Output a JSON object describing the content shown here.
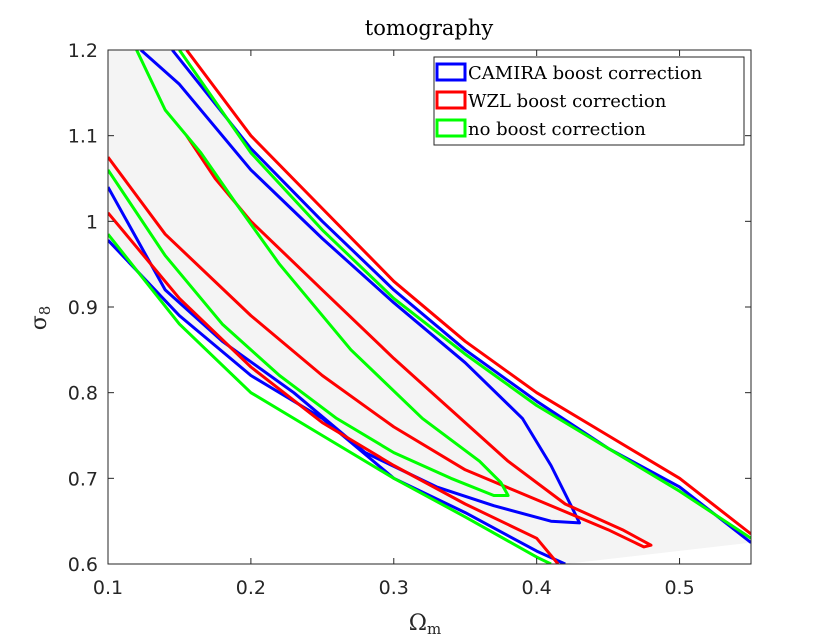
{
  "chart_data": {
    "type": "contour",
    "title": "tomography",
    "xlabel": "Ω",
    "xlabel_sub": "m",
    "ylabel": "σ",
    "ylabel_sub": "8",
    "xlim": [
      0.1,
      0.55
    ],
    "ylim": [
      0.6,
      1.2
    ],
    "xticks": [
      0.1,
      0.2,
      0.3,
      0.4,
      0.5
    ],
    "xtick_labels": [
      "0.1",
      "0.2",
      "0.3",
      "0.4",
      "0.5"
    ],
    "yticks": [
      0.6,
      0.7,
      0.8,
      0.9,
      1.0,
      1.1,
      1.2
    ],
    "ytick_labels": [
      "0.6",
      "0.7",
      "0.8",
      "0.9",
      "1",
      "1.1",
      "1.2"
    ],
    "legend_position": "top-right",
    "series": [
      {
        "name": "CAMIRA boost correction",
        "color": "#0000ff",
        "contours": [
          [
            [
              0.123,
              1.2
            ],
            [
              0.15,
              1.16
            ],
            [
              0.2,
              1.06
            ],
            [
              0.25,
              0.98
            ],
            [
              0.3,
              0.905
            ],
            [
              0.35,
              0.835
            ],
            [
              0.39,
              0.77
            ],
            [
              0.41,
              0.715
            ],
            [
              0.425,
              0.665
            ],
            [
              0.43,
              0.648
            ],
            [
              0.41,
              0.65
            ],
            [
              0.37,
              0.668
            ],
            [
              0.33,
              0.69
            ],
            [
              0.28,
              0.73
            ],
            [
              0.23,
              0.8
            ],
            [
              0.18,
              0.86
            ],
            [
              0.14,
              0.92
            ],
            [
              0.1,
              1.04
            ]
          ],
          [
            [
              0.145,
              1.2
            ],
            [
              0.2,
              1.085
            ],
            [
              0.25,
              1.0
            ],
            [
              0.3,
              0.92
            ],
            [
              0.35,
              0.85
            ],
            [
              0.4,
              0.79
            ],
            [
              0.45,
              0.735
            ],
            [
              0.5,
              0.69
            ],
            [
              0.55,
              0.625
            ]
          ],
          [
            [
              0.1,
              0.978
            ],
            [
              0.15,
              0.89
            ],
            [
              0.2,
              0.82
            ],
            [
              0.25,
              0.77
            ],
            [
              0.3,
              0.7
            ],
            [
              0.35,
              0.66
            ],
            [
              0.4,
              0.615
            ],
            [
              0.42,
              0.6
            ]
          ]
        ]
      },
      {
        "name": "WZL boost correction",
        "color": "#ff0000",
        "contours": [
          [
            [
              0.1,
              1.075
            ],
            [
              0.14,
              0.985
            ],
            [
              0.2,
              0.89
            ],
            [
              0.25,
              0.82
            ],
            [
              0.3,
              0.76
            ],
            [
              0.35,
              0.71
            ],
            [
              0.4,
              0.675
            ],
            [
              0.45,
              0.64
            ],
            [
              0.475,
              0.62
            ],
            [
              0.48,
              0.622
            ],
            [
              0.46,
              0.64
            ],
            [
              0.42,
              0.67
            ],
            [
              0.38,
              0.72
            ],
            [
              0.34,
              0.78
            ],
            [
              0.3,
              0.84
            ],
            [
              0.25,
              0.92
            ],
            [
              0.2,
              1.0
            ],
            [
              0.175,
              1.05
            ],
            [
              0.155,
              1.1
            ]
          ],
          [
            [
              0.155,
              1.2
            ],
            [
              0.2,
              1.1
            ],
            [
              0.25,
              1.015
            ],
            [
              0.3,
              0.93
            ],
            [
              0.35,
              0.86
            ],
            [
              0.4,
              0.8
            ],
            [
              0.45,
              0.75
            ],
            [
              0.5,
              0.7
            ],
            [
              0.55,
              0.635
            ]
          ],
          [
            [
              0.1,
              1.01
            ],
            [
              0.15,
              0.91
            ],
            [
              0.2,
              0.83
            ],
            [
              0.25,
              0.765
            ],
            [
              0.3,
              0.715
            ],
            [
              0.35,
              0.67
            ],
            [
              0.4,
              0.63
            ],
            [
              0.415,
              0.6
            ]
          ]
        ]
      },
      {
        "name": "no boost correction",
        "color": "#00ff00",
        "contours": [
          [
            [
              0.1,
              1.06
            ],
            [
              0.14,
              0.96
            ],
            [
              0.18,
              0.88
            ],
            [
              0.22,
              0.82
            ],
            [
              0.26,
              0.77
            ],
            [
              0.3,
              0.73
            ],
            [
              0.34,
              0.7
            ],
            [
              0.37,
              0.68
            ],
            [
              0.38,
              0.68
            ],
            [
              0.375,
              0.695
            ],
            [
              0.36,
              0.72
            ],
            [
              0.32,
              0.77
            ],
            [
              0.27,
              0.85
            ],
            [
              0.22,
              0.95
            ],
            [
              0.19,
              1.02
            ],
            [
              0.165,
              1.08
            ],
            [
              0.14,
              1.13
            ],
            [
              0.12,
              1.2
            ]
          ],
          [
            [
              0.15,
              1.2
            ],
            [
              0.2,
              1.08
            ],
            [
              0.25,
              0.99
            ],
            [
              0.3,
              0.91
            ],
            [
              0.35,
              0.845
            ],
            [
              0.4,
              0.785
            ],
            [
              0.45,
              0.735
            ],
            [
              0.5,
              0.685
            ],
            [
              0.55,
              0.63
            ]
          ],
          [
            [
              0.1,
              0.985
            ],
            [
              0.15,
              0.88
            ],
            [
              0.2,
              0.8
            ],
            [
              0.25,
              0.75
            ],
            [
              0.3,
              0.7
            ],
            [
              0.35,
              0.655
            ],
            [
              0.4,
              0.608
            ],
            [
              0.41,
              0.6
            ]
          ]
        ]
      }
    ]
  }
}
